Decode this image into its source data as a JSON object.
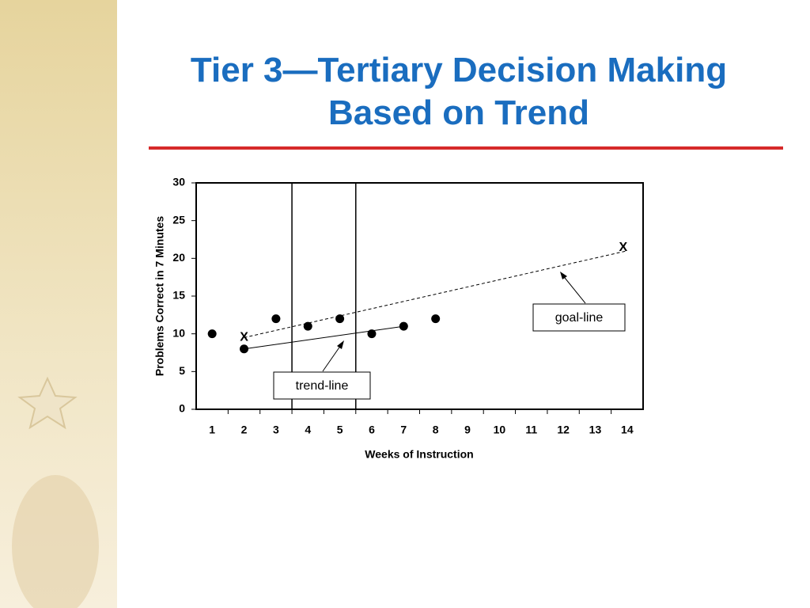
{
  "chart_data": {
    "type": "scatter",
    "title": "Tier 3—Tertiary Decision Making Based on Trend",
    "x_label": "Weeks of Instruction",
    "y_label": "Problems Correct in 7 Minutes",
    "xlim": [
      0.5,
      14.5
    ],
    "xticks": [
      1,
      2,
      3,
      4,
      5,
      6,
      7,
      8,
      9,
      10,
      11,
      12,
      13,
      14
    ],
    "ylim": [
      0,
      30
    ],
    "yticks": [
      0,
      5,
      10,
      15,
      20,
      25,
      30
    ],
    "points": {
      "color": "#000000",
      "x": [
        1,
        2,
        3,
        4,
        5,
        6,
        7,
        8
      ],
      "y": [
        10,
        8,
        12,
        11,
        12,
        10,
        11,
        12
      ]
    },
    "phase_lines": [
      3.5,
      5.5
    ],
    "goal_line": {
      "label": "goal-line",
      "marker": "X",
      "x": [
        2,
        14
      ],
      "y": [
        9.5,
        21
      ]
    },
    "trend_line": {
      "label": "trend-line",
      "x": [
        2,
        7
      ],
      "y": [
        8,
        11
      ]
    }
  }
}
